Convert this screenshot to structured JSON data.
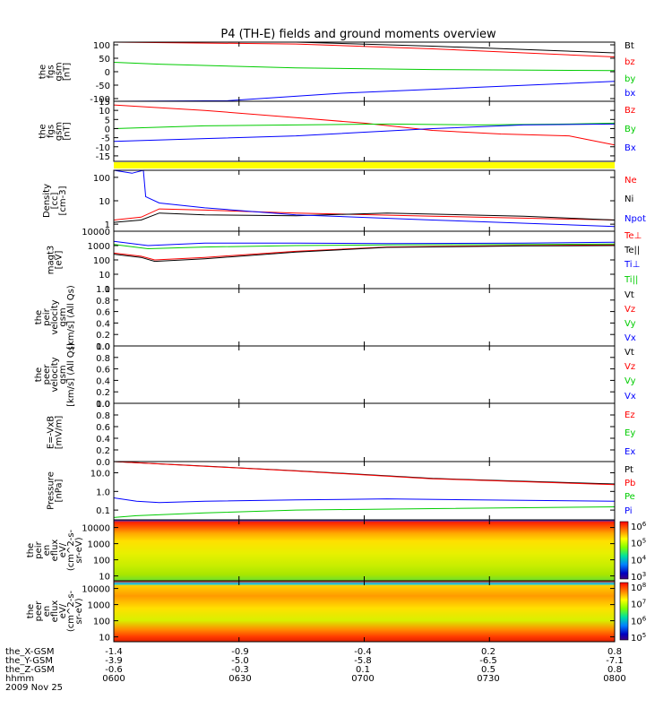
{
  "title": "P4 (TH-E) fields and ground moments overview",
  "chart_data": [
    {
      "type": "line",
      "ylabel": [
        "the",
        "fgs",
        "gsm",
        "[nT]"
      ],
      "yticks": [
        "100",
        "50",
        "0",
        "-50",
        "-100"
      ],
      "yticks_values": [
        100,
        50,
        0,
        -50,
        -100
      ],
      "ylim": [
        -110,
        110
      ],
      "series": [
        {
          "name": "Bt",
          "color": "#000000",
          "x": [
            -1.4,
            -0.6,
            0.0,
            0.8
          ],
          "y": [
            130,
            112,
            95,
            70
          ]
        },
        {
          "name": "bz",
          "color": "#ff0000",
          "x": [
            -1.4,
            -0.6,
            0.0,
            0.8
          ],
          "y": [
            150,
            103,
            85,
            55
          ]
        },
        {
          "name": "by",
          "color": "#00cc00",
          "x": [
            -1.4,
            -1.2,
            -0.6,
            0.0,
            0.8
          ],
          "y": [
            35,
            28,
            14,
            8,
            4
          ]
        },
        {
          "name": "bx",
          "color": "#0000ff",
          "x": [
            -1.4,
            -0.9,
            -0.4,
            0.2,
            0.8
          ],
          "y": [
            -150,
            -108,
            -80,
            -58,
            -36
          ]
        }
      ]
    },
    {
      "type": "line",
      "ylabel": [
        "the",
        "fgs",
        "gsm",
        "[nT]"
      ],
      "yticks": [
        "15",
        "10",
        "5",
        "0",
        "-5",
        "-10",
        "-15"
      ],
      "yticks_values": [
        15,
        10,
        5,
        0,
        -5,
        -10,
        -15
      ],
      "ylim": [
        -18,
        15
      ],
      "series": [
        {
          "name": "Bz",
          "color": "#ff0000",
          "x": [
            -1.4,
            -1.0,
            -0.6,
            -0.3,
            0.0,
            0.3,
            0.6,
            0.8
          ],
          "y": [
            13,
            10,
            6,
            3,
            -1,
            -3,
            -4,
            -9
          ]
        },
        {
          "name": "By",
          "color": "#00cc00",
          "x": [
            -1.4,
            -1.0,
            -0.6,
            -0.2,
            0.2,
            0.6,
            0.8
          ],
          "y": [
            0,
            1.5,
            2,
            2.5,
            2,
            2.5,
            3
          ]
        },
        {
          "name": "Bx",
          "color": "#0000ff",
          "x": [
            -1.4,
            -1.0,
            -0.6,
            -0.3,
            0.0,
            0.4,
            0.8
          ],
          "y": [
            -7,
            -5.5,
            -4,
            -2,
            0,
            2,
            2.5
          ]
        }
      ]
    },
    {
      "type": "line",
      "log": true,
      "ylabel": [
        "Density",
        "[cc]",
        "[cm-3]"
      ],
      "yticks": [
        "100",
        "10",
        "1"
      ],
      "yticks_values": [
        100,
        10,
        1
      ],
      "ylim": [
        0.5,
        200
      ],
      "series": [
        {
          "name": "Ne",
          "color": "#ff0000",
          "x": [
            -1.4,
            -1.28,
            -1.2,
            -1.0,
            -0.6,
            0.0,
            0.8
          ],
          "y": [
            1.5,
            2,
            4.5,
            4,
            3,
            2.2,
            1.5
          ]
        },
        {
          "name": "Ni",
          "color": "#000000",
          "x": [
            -1.4,
            -1.28,
            -1.2,
            -1.0,
            -0.6,
            -0.2,
            0.4,
            0.8
          ],
          "y": [
            1.2,
            1.5,
            3,
            2.5,
            2.3,
            3,
            2.2,
            1.5
          ]
        },
        {
          "name": "Npot",
          "color": "#0000ff",
          "x": [
            -1.4,
            -1.32,
            -1.27,
            -1.26,
            -1.2,
            -1.0,
            -0.6,
            0.0,
            0.8
          ],
          "y": [
            200,
            150,
            200,
            15,
            8,
            5,
            2.5,
            1.5,
            0.8
          ]
        }
      ]
    },
    {
      "type": "line",
      "log": true,
      "ylabel": [
        "magt3",
        "[eV]"
      ],
      "yticks": [
        "10000",
        "1000",
        "100",
        "10",
        "1"
      ],
      "yticks_values": [
        10000,
        1000,
        100,
        10,
        1
      ],
      "ylim": [
        1,
        10000
      ],
      "series": [
        {
          "name": "Te⊥",
          "color": "#ff0000",
          "x": [
            -1.4,
            -1.28,
            -1.22,
            -1.0,
            -0.6,
            -0.2,
            0.4,
            0.8
          ],
          "y": [
            300,
            180,
            100,
            150,
            400,
            800,
            1000,
            1100
          ]
        },
        {
          "name": "Te||",
          "color": "#000000",
          "x": [
            -1.4,
            -1.28,
            -1.22,
            -1.0,
            -0.6,
            -0.2,
            0.4,
            0.8
          ],
          "y": [
            250,
            150,
            80,
            120,
            350,
            750,
            950,
            1000
          ]
        },
        {
          "name": "Ti⊥",
          "color": "#0000ff",
          "x": [
            -1.4,
            -1.25,
            -1.0,
            -0.6,
            -0.2,
            0.4,
            0.8
          ],
          "y": [
            2000,
            1000,
            1500,
            1500,
            1400,
            1500,
            1700
          ]
        },
        {
          "name": "Ti||",
          "color": "#00cc00",
          "x": [
            -1.4,
            -1.25,
            -1.0,
            -0.6,
            -0.2,
            0.4,
            0.8
          ],
          "y": [
            1200,
            600,
            800,
            1000,
            1100,
            1200,
            1300
          ]
        }
      ]
    },
    {
      "type": "line",
      "ylabel": [
        "the",
        "peir",
        "velocity",
        "gsm",
        "[km/s] (All Qs)"
      ],
      "yticks": [
        "1.0",
        "0.8",
        "0.6",
        "0.4",
        "0.2",
        "0.0"
      ],
      "yticks_values": [
        1.0,
        0.8,
        0.6,
        0.4,
        0.2,
        0.0
      ],
      "ylim": [
        0,
        1
      ],
      "series": [
        {
          "name": "Vt",
          "color": "#000000"
        },
        {
          "name": "Vz",
          "color": "#ff0000"
        },
        {
          "name": "Vy",
          "color": "#00cc00"
        },
        {
          "name": "Vx",
          "color": "#0000ff"
        }
      ]
    },
    {
      "type": "line",
      "ylabel": [
        "the",
        "peer",
        "velocity",
        "gsm",
        "[km/s] (All Qs)"
      ],
      "yticks": [
        "1.0",
        "0.8",
        "0.6",
        "0.4",
        "0.2",
        "0.0"
      ],
      "yticks_values": [
        1.0,
        0.8,
        0.6,
        0.4,
        0.2,
        0.0
      ],
      "ylim": [
        0,
        1
      ],
      "series": [
        {
          "name": "Vt",
          "color": "#000000"
        },
        {
          "name": "Vz",
          "color": "#ff0000"
        },
        {
          "name": "Vy",
          "color": "#00cc00"
        },
        {
          "name": "Vx",
          "color": "#0000ff"
        }
      ]
    },
    {
      "type": "line",
      "ylabel": [
        "E=-VxB",
        "[mV/m]"
      ],
      "yticks": [
        "1.0",
        "0.8",
        "0.6",
        "0.4",
        "0.2",
        "0.0"
      ],
      "yticks_values": [
        1.0,
        0.8,
        0.6,
        0.4,
        0.2,
        0.0
      ],
      "ylim": [
        0,
        1
      ],
      "series": [
        {
          "name": "Ez",
          "color": "#ff0000"
        },
        {
          "name": "Ey",
          "color": "#00cc00"
        },
        {
          "name": "Ex",
          "color": "#0000ff"
        }
      ]
    },
    {
      "type": "line",
      "log": true,
      "ylabel": [
        "Pressure",
        "[nPa]"
      ],
      "yticks": [
        "10.0",
        "1.0",
        "0.1"
      ],
      "yticks_values": [
        10,
        1,
        0.1
      ],
      "ylim": [
        0.03,
        40
      ],
      "series": [
        {
          "name": "Pt",
          "color": "#000000",
          "x": [
            -1.4,
            -0.6,
            0.0,
            0.8
          ],
          "y": [
            40,
            13,
            5,
            2.5
          ]
        },
        {
          "name": "Pb",
          "color": "#ff0000",
          "x": [
            -1.4,
            -0.6,
            0.0,
            0.8
          ],
          "y": [
            40,
            12.5,
            4.8,
            2.3
          ]
        },
        {
          "name": "Pe",
          "color": "#00cc00",
          "x": [
            -1.4,
            -1.3,
            -1.0,
            -0.6,
            0.0,
            0.8
          ],
          "y": [
            0.04,
            0.05,
            0.07,
            0.1,
            0.12,
            0.15
          ]
        },
        {
          "name": "Pi",
          "color": "#0000ff",
          "x": [
            -1.4,
            -1.3,
            -1.2,
            -1.0,
            -0.6,
            -0.2,
            0.2,
            0.8
          ],
          "y": [
            0.45,
            0.3,
            0.25,
            0.3,
            0.35,
            0.4,
            0.35,
            0.3
          ]
        }
      ]
    },
    {
      "type": "heatmap",
      "ylabel": [
        "the",
        "peir",
        "en",
        "eflux",
        "eV/",
        "(cm^2-s-",
        "sr-eV)"
      ],
      "yticks": [
        "10000",
        "1000",
        "100",
        "10"
      ],
      "yticks_values": [
        10000,
        1000,
        100,
        10
      ],
      "ylim": [
        5,
        30000
      ],
      "colorbar_labels": [
        "10^6",
        "10^5",
        "10^4",
        "10^3"
      ],
      "colorbar_values": [
        1000000,
        100000,
        10000,
        1000
      ]
    },
    {
      "type": "heatmap",
      "ylabel": [
        "the",
        "peer",
        "en",
        "eflux",
        "eV/",
        "(cm^2-s-",
        "sr-eV)"
      ],
      "yticks": [
        "10000",
        "1000",
        "100",
        "10"
      ],
      "yticks_values": [
        10000,
        1000,
        100,
        10
      ],
      "ylim": [
        5,
        30000
      ],
      "colorbar_labels": [
        "10^8",
        "10^7",
        "10^6",
        "10^5"
      ],
      "colorbar_values": [
        100000000,
        10000000,
        1000000,
        100000
      ]
    }
  ],
  "x_axis": {
    "rows": [
      {
        "label": "the_X-GSM",
        "values": [
          "-1.4",
          "-0.9",
          "-0.4",
          "0.2",
          "0.8"
        ]
      },
      {
        "label": "the_Y-GSM",
        "values": [
          "-3.9",
          "-5.0",
          "-5.8",
          "-6.5",
          "-7.1"
        ]
      },
      {
        "label": "the_Z-GSM",
        "values": [
          "-0.6",
          "-0.3",
          "0.1",
          "0.5",
          "0.8"
        ]
      },
      {
        "label": "hhmm",
        "values": [
          "0600",
          "0630",
          "0700",
          "0730",
          "0800"
        ]
      }
    ],
    "date": "2009 Nov 25"
  },
  "colors": {
    "status_bar": "#ffff00",
    "axis": "#000000"
  }
}
